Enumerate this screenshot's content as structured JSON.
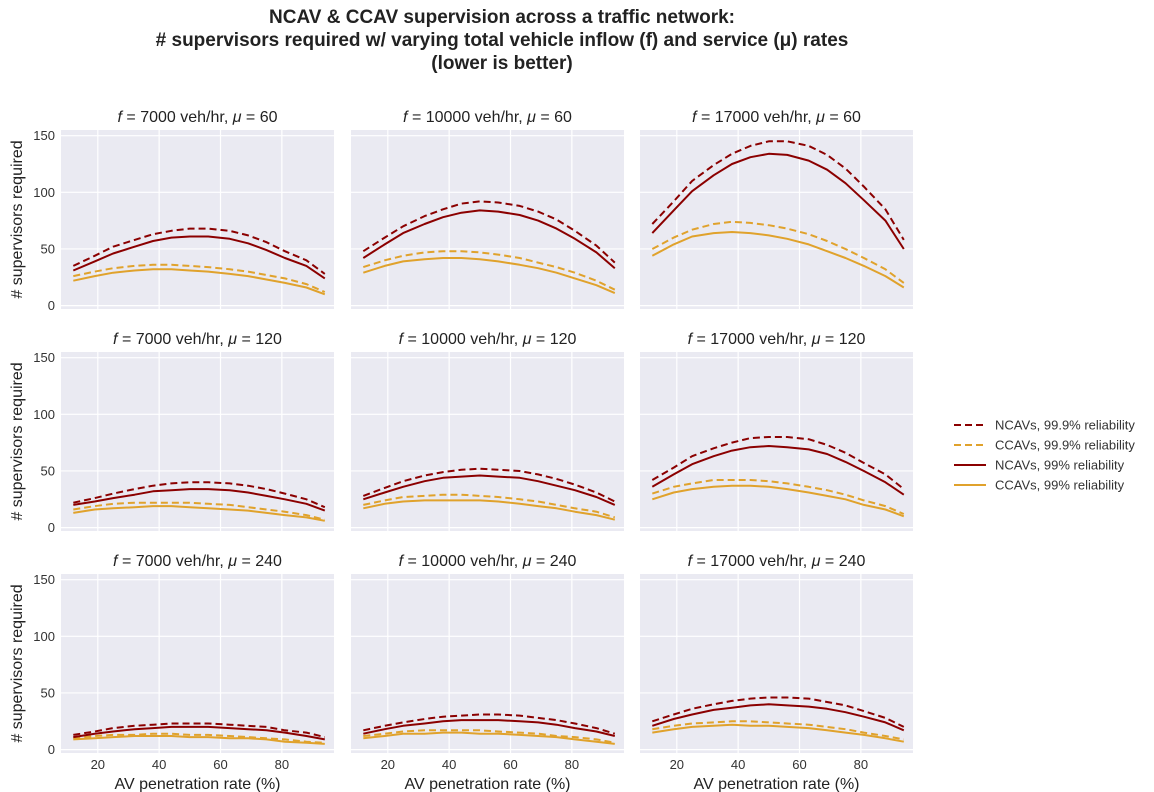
{
  "chart_data": {
    "type": "line",
    "title_lines": [
      "NCAV & CCAV supervision across a traffic network:",
      "# supervisors required w/ varying total vehicle inflow (f) and service (μ) rates",
      "(lower is better)"
    ],
    "xlabel": "AV penetration rate (%)",
    "ylabel": "# supervisors required",
    "xlim": [
      8,
      97
    ],
    "ylim": [
      -3,
      155
    ],
    "xticks": [
      "20",
      "40",
      "60",
      "80"
    ],
    "yticks": [
      "0",
      "50",
      "100",
      "150"
    ],
    "grid": true,
    "legend_position": "right",
    "series_styles": [
      {
        "key": "ncav999",
        "name": "NCAVs, 99.9% reliability",
        "color": "#8b0000",
        "dash": "dashed"
      },
      {
        "key": "ccav999",
        "name": "CCAVs, 99.9% reliability",
        "color": "#e0a22c",
        "dash": "dashed"
      },
      {
        "key": "ncav99",
        "name": "NCAVs, 99% reliability",
        "color": "#8b0000",
        "dash": "solid"
      },
      {
        "key": "ccav99",
        "name": "CCAVs, 99% reliability",
        "color": "#e0a22c",
        "dash": "solid"
      }
    ],
    "x": [
      12,
      19,
      25,
      32,
      38,
      44,
      50,
      56,
      63,
      69,
      75,
      81,
      88,
      94
    ],
    "panels": [
      {
        "f": "7000",
        "mu": "60",
        "series": {
          "ncav999": [
            35,
            44,
            52,
            58,
            63,
            66,
            68,
            68,
            66,
            62,
            56,
            48,
            40,
            28
          ],
          "ccav999": [
            26,
            30,
            33,
            35,
            36,
            36,
            35,
            34,
            32,
            30,
            27,
            24,
            19,
            12
          ],
          "ncav99": [
            31,
            39,
            46,
            52,
            57,
            60,
            61,
            61,
            59,
            55,
            49,
            42,
            35,
            24
          ],
          "ccav99": [
            22,
            26,
            29,
            31,
            32,
            32,
            31,
            30,
            28,
            26,
            23,
            20,
            16,
            10
          ]
        }
      },
      {
        "f": "10000",
        "mu": "60",
        "series": {
          "ncav999": [
            48,
            60,
            70,
            79,
            85,
            90,
            92,
            91,
            88,
            83,
            76,
            66,
            53,
            38
          ],
          "ccav999": [
            34,
            40,
            44,
            47,
            48,
            48,
            47,
            45,
            42,
            38,
            34,
            29,
            22,
            14
          ],
          "ncav99": [
            42,
            54,
            64,
            72,
            78,
            82,
            84,
            83,
            80,
            75,
            68,
            59,
            47,
            33
          ],
          "ccav99": [
            29,
            35,
            39,
            41,
            42,
            42,
            41,
            39,
            36,
            33,
            29,
            24,
            18,
            11
          ]
        }
      },
      {
        "f": "17000",
        "mu": "60",
        "series": {
          "ncav999": [
            72,
            92,
            110,
            124,
            134,
            141,
            145,
            145,
            141,
            133,
            121,
            105,
            85,
            58
          ],
          "ccav999": [
            50,
            60,
            67,
            72,
            74,
            73,
            71,
            68,
            63,
            57,
            50,
            42,
            32,
            20
          ],
          "ncav99": [
            64,
            84,
            101,
            115,
            125,
            131,
            134,
            133,
            128,
            120,
            108,
            93,
            75,
            50
          ],
          "ccav99": [
            44,
            54,
            61,
            64,
            65,
            64,
            62,
            59,
            54,
            48,
            42,
            35,
            26,
            16
          ]
        }
      },
      {
        "f": "7000",
        "mu": "120",
        "series": {
          "ncav999": [
            22,
            26,
            30,
            34,
            37,
            39,
            40,
            40,
            39,
            37,
            34,
            30,
            25,
            18
          ],
          "ccav999": [
            16,
            19,
            21,
            22,
            22,
            22,
            22,
            21,
            20,
            18,
            16,
            14,
            11,
            7
          ],
          "ncav99": [
            20,
            23,
            26,
            29,
            32,
            33,
            34,
            34,
            33,
            31,
            28,
            25,
            21,
            15
          ],
          "ccav99": [
            13,
            16,
            17,
            18,
            19,
            19,
            18,
            17,
            16,
            15,
            13,
            11,
            9,
            6
          ]
        }
      },
      {
        "f": "10000",
        "mu": "120",
        "series": {
          "ncav999": [
            28,
            35,
            41,
            46,
            49,
            51,
            52,
            51,
            50,
            47,
            43,
            38,
            31,
            23
          ],
          "ccav999": [
            20,
            24,
            27,
            28,
            29,
            29,
            28,
            27,
            25,
            23,
            20,
            17,
            14,
            9
          ],
          "ncav99": [
            25,
            31,
            36,
            41,
            44,
            45,
            46,
            45,
            44,
            41,
            37,
            33,
            27,
            20
          ],
          "ccav99": [
            17,
            21,
            23,
            24,
            24,
            24,
            24,
            23,
            21,
            19,
            17,
            14,
            11,
            7
          ]
        }
      },
      {
        "f": "17000",
        "mu": "120",
        "series": {
          "ncav999": [
            42,
            53,
            63,
            70,
            75,
            79,
            80,
            80,
            78,
            73,
            66,
            57,
            47,
            34
          ],
          "ccav999": [
            30,
            36,
            39,
            42,
            42,
            42,
            41,
            39,
            36,
            33,
            29,
            24,
            19,
            12
          ],
          "ncav99": [
            36,
            47,
            56,
            63,
            68,
            71,
            72,
            71,
            69,
            65,
            58,
            50,
            40,
            29
          ],
          "ccav99": [
            25,
            31,
            34,
            36,
            37,
            37,
            36,
            34,
            31,
            28,
            25,
            20,
            16,
            10
          ]
        }
      },
      {
        "f": "7000",
        "mu": "240",
        "series": {
          "ncav999": [
            13,
            16,
            19,
            21,
            22,
            23,
            23,
            23,
            22,
            21,
            20,
            17,
            15,
            11
          ],
          "ccav999": [
            10,
            12,
            13,
            13,
            14,
            14,
            13,
            13,
            12,
            11,
            10,
            9,
            7,
            6
          ],
          "ncav99": [
            11,
            14,
            16,
            18,
            19,
            20,
            20,
            20,
            19,
            18,
            17,
            15,
            12,
            9
          ],
          "ccav99": [
            9,
            10,
            11,
            12,
            12,
            12,
            11,
            11,
            10,
            10,
            9,
            7,
            6,
            5
          ]
        }
      },
      {
        "f": "10000",
        "mu": "240",
        "series": {
          "ncav999": [
            17,
            21,
            24,
            27,
            29,
            30,
            31,
            31,
            30,
            28,
            26,
            23,
            19,
            14
          ],
          "ccav999": [
            12,
            14,
            16,
            17,
            17,
            17,
            17,
            16,
            15,
            14,
            12,
            11,
            9,
            6
          ],
          "ncav99": [
            14,
            18,
            21,
            23,
            25,
            26,
            26,
            26,
            25,
            24,
            22,
            19,
            16,
            12
          ],
          "ccav99": [
            10,
            12,
            14,
            14,
            15,
            15,
            14,
            14,
            13,
            12,
            11,
            9,
            7,
            5
          ]
        }
      },
      {
        "f": "17000",
        "mu": "240",
        "series": {
          "ncav999": [
            25,
            31,
            36,
            40,
            43,
            45,
            46,
            46,
            45,
            42,
            39,
            34,
            28,
            20
          ],
          "ccav999": [
            18,
            21,
            23,
            24,
            25,
            25,
            24,
            23,
            22,
            20,
            18,
            15,
            12,
            9
          ],
          "ncav99": [
            21,
            27,
            31,
            35,
            37,
            39,
            40,
            39,
            38,
            36,
            33,
            29,
            24,
            17
          ],
          "ccav99": [
            15,
            18,
            20,
            21,
            22,
            21,
            21,
            20,
            19,
            17,
            15,
            13,
            10,
            7
          ]
        }
      }
    ]
  },
  "panel_title_text": {
    "f_symbol": "f",
    "mu_symbol": "μ",
    "eq": " = ",
    "unit": " veh/hr, "
  }
}
